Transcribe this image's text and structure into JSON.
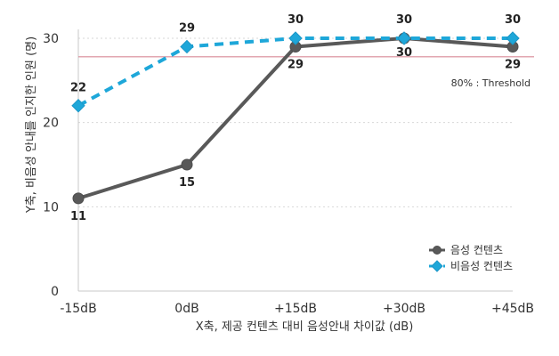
{
  "chart_data": {
    "type": "line",
    "categories": [
      "-15dB",
      "0dB",
      "+15dB",
      "+30dB",
      "+45dB"
    ],
    "series": [
      {
        "name": "음성 컨텐츠",
        "values": [
          11,
          15,
          29,
          30,
          29
        ],
        "color": "#595959",
        "marker": "circle",
        "line_style": "solid"
      },
      {
        "name": "비음성 컨텐츠",
        "values": [
          22,
          29,
          30,
          30,
          30
        ],
        "color": "#1ea7d9",
        "marker": "diamond",
        "line_style": "dashed"
      }
    ],
    "threshold": {
      "value": 27.8,
      "label": "80% : Threshold",
      "color": "#d98a97"
    },
    "xlabel": "X축, 제공 컨텐츠 대비 음성안내 차이값 (dB)",
    "ylabel": "Y축, 비음성 안내를 인지한 인원 (명)",
    "ylim": [
      0,
      30
    ],
    "yticks": [
      0,
      10,
      20,
      30
    ],
    "grid": true,
    "legend_position": "bottom-right"
  }
}
